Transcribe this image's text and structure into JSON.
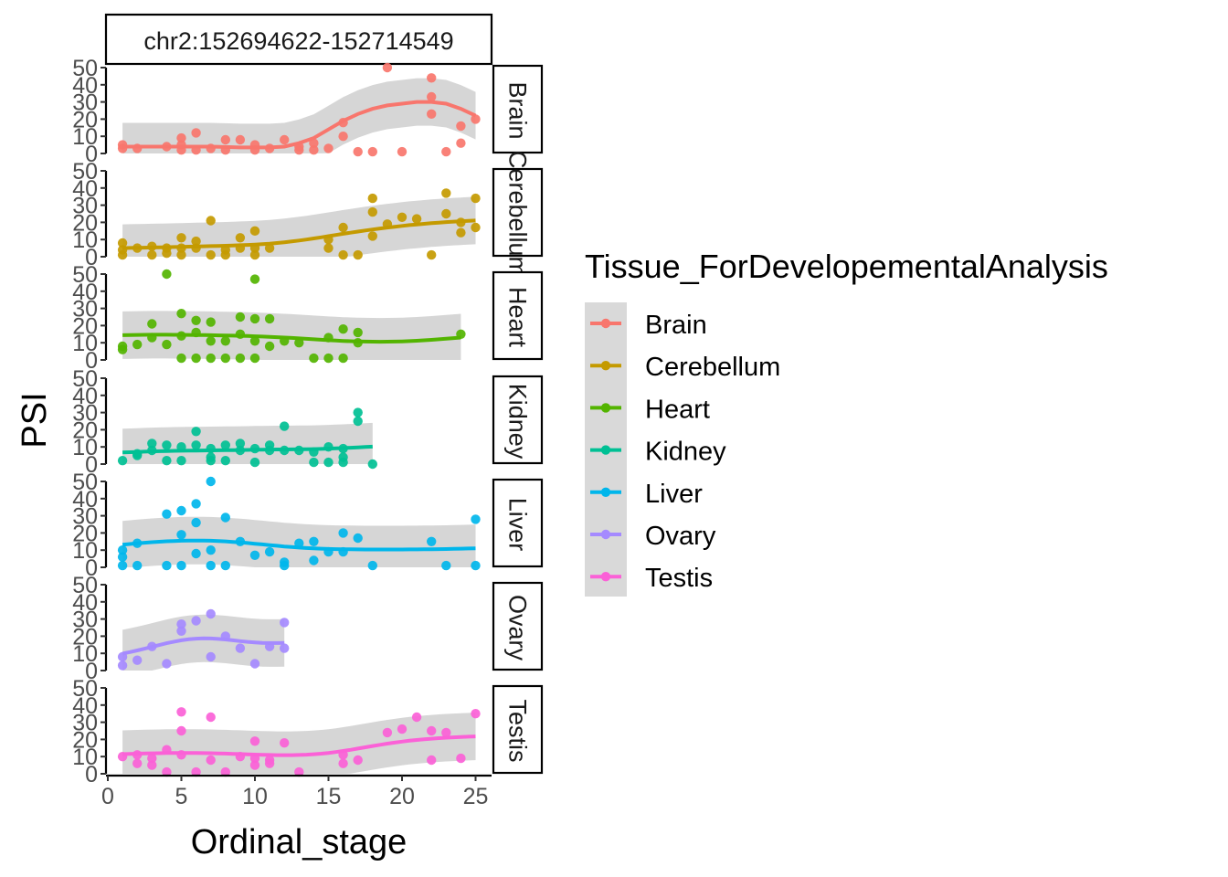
{
  "chart_data": {
    "type": "scatter",
    "facet_title": "chr2:152694622-152714549",
    "xlabel": "Ordinal_stage",
    "ylabel": "PSI",
    "xlim": [
      0,
      28
    ],
    "ylim": [
      0,
      50
    ],
    "x_ticks": [
      0,
      5,
      10,
      15,
      20,
      25
    ],
    "y_ticks": [
      0,
      10,
      20,
      30,
      40,
      50
    ],
    "legend_title": "Tissue_ForDevelopementalAnalysis",
    "legend_position": "right",
    "grid": false,
    "panels": [
      {
        "name": "Brain",
        "strip_label": "Brain",
        "color": "#F8766D",
        "points": [
          [
            1,
            5
          ],
          [
            1,
            3
          ],
          [
            2,
            3
          ],
          [
            4,
            4
          ],
          [
            5,
            9
          ],
          [
            5,
            5
          ],
          [
            5,
            2
          ],
          [
            6,
            12
          ],
          [
            6,
            2
          ],
          [
            7,
            3
          ],
          [
            8,
            8
          ],
          [
            8,
            2
          ],
          [
            9,
            8
          ],
          [
            10,
            5
          ],
          [
            10,
            2
          ],
          [
            11,
            3
          ],
          [
            12,
            8
          ],
          [
            13,
            2
          ],
          [
            13,
            4
          ],
          [
            14,
            2
          ],
          [
            14,
            6
          ],
          [
            15,
            3
          ],
          [
            16,
            18
          ],
          [
            16,
            10
          ],
          [
            17,
            1
          ],
          [
            18,
            1
          ],
          [
            19,
            50
          ],
          [
            20,
            1
          ],
          [
            22,
            44
          ],
          [
            22,
            33
          ],
          [
            22,
            23
          ],
          [
            23,
            1
          ],
          [
            24,
            16
          ],
          [
            24,
            6
          ],
          [
            25,
            20
          ]
        ],
        "trend": [
          [
            1,
            4
          ],
          [
            3,
            4
          ],
          [
            5,
            4
          ],
          [
            7,
            4
          ],
          [
            9,
            3.5
          ],
          [
            11,
            3.5
          ],
          [
            12,
            4
          ],
          [
            13,
            6
          ],
          [
            14,
            9
          ],
          [
            15,
            14
          ],
          [
            16,
            19
          ],
          [
            17,
            23
          ],
          [
            18,
            26
          ],
          [
            19,
            28
          ],
          [
            20,
            29
          ],
          [
            21,
            30
          ],
          [
            22,
            30
          ],
          [
            23,
            29
          ],
          [
            24,
            26
          ],
          [
            25,
            22
          ]
        ]
      },
      {
        "name": "Cerebellum",
        "strip_label": "Cerebellum",
        "color": "#C49A00",
        "points": [
          [
            1,
            8
          ],
          [
            1,
            4
          ],
          [
            1,
            1
          ],
          [
            2,
            5
          ],
          [
            3,
            6
          ],
          [
            3,
            1
          ],
          [
            4,
            5
          ],
          [
            4,
            2
          ],
          [
            5,
            11
          ],
          [
            5,
            5
          ],
          [
            5,
            1
          ],
          [
            6,
            9
          ],
          [
            6,
            5
          ],
          [
            7,
            21
          ],
          [
            7,
            1
          ],
          [
            8,
            4
          ],
          [
            8,
            1
          ],
          [
            9,
            11
          ],
          [
            9,
            5
          ],
          [
            10,
            15
          ],
          [
            10,
            5
          ],
          [
            10,
            1
          ],
          [
            11,
            5
          ],
          [
            15,
            10
          ],
          [
            15,
            5
          ],
          [
            16,
            17
          ],
          [
            16,
            1
          ],
          [
            17,
            1
          ],
          [
            18,
            34
          ],
          [
            18,
            26
          ],
          [
            18,
            12
          ],
          [
            19,
            19
          ],
          [
            20,
            23
          ],
          [
            21,
            22
          ],
          [
            22,
            1
          ],
          [
            23,
            37
          ],
          [
            23,
            25
          ],
          [
            24,
            20
          ],
          [
            24,
            14
          ],
          [
            25,
            34
          ],
          [
            25,
            17
          ]
        ]
      },
      {
        "name": "Heart",
        "strip_label": "Heart",
        "color": "#53B400",
        "points": [
          [
            1,
            8
          ],
          [
            1,
            6
          ],
          [
            2,
            9
          ],
          [
            3,
            21
          ],
          [
            3,
            13
          ],
          [
            4,
            50
          ],
          [
            4,
            9
          ],
          [
            5,
            27
          ],
          [
            5,
            14
          ],
          [
            5,
            1
          ],
          [
            6,
            23
          ],
          [
            6,
            16
          ],
          [
            6,
            1
          ],
          [
            7,
            22
          ],
          [
            7,
            11
          ],
          [
            7,
            1
          ],
          [
            8,
            11
          ],
          [
            8,
            1
          ],
          [
            9,
            25
          ],
          [
            9,
            15
          ],
          [
            9,
            1
          ],
          [
            10,
            47
          ],
          [
            10,
            24
          ],
          [
            10,
            11
          ],
          [
            10,
            1
          ],
          [
            11,
            24
          ],
          [
            11,
            8
          ],
          [
            12,
            11
          ],
          [
            13,
            10
          ],
          [
            14,
            1
          ],
          [
            15,
            13
          ],
          [
            15,
            1
          ],
          [
            16,
            18
          ],
          [
            16,
            1
          ],
          [
            17,
            16
          ],
          [
            17,
            10
          ],
          [
            24,
            15
          ]
        ]
      },
      {
        "name": "Kidney",
        "strip_label": "Kidney",
        "color": "#00C094",
        "points": [
          [
            1,
            2
          ],
          [
            2,
            6
          ],
          [
            2,
            5
          ],
          [
            3,
            8
          ],
          [
            3,
            12
          ],
          [
            4,
            2
          ],
          [
            4,
            11
          ],
          [
            5,
            10
          ],
          [
            5,
            2
          ],
          [
            6,
            19
          ],
          [
            6,
            11
          ],
          [
            7,
            9
          ],
          [
            7,
            4
          ],
          [
            7,
            2
          ],
          [
            8,
            11
          ],
          [
            8,
            2
          ],
          [
            9,
            12
          ],
          [
            9,
            8
          ],
          [
            10,
            9
          ],
          [
            10,
            1
          ],
          [
            11,
            11
          ],
          [
            11,
            8
          ],
          [
            12,
            22
          ],
          [
            12,
            8
          ],
          [
            13,
            8
          ],
          [
            14,
            1
          ],
          [
            14,
            7
          ],
          [
            15,
            1
          ],
          [
            15,
            10
          ],
          [
            16,
            9
          ],
          [
            16,
            4
          ],
          [
            16,
            1
          ],
          [
            17,
            30
          ],
          [
            17,
            25
          ],
          [
            18,
            0
          ]
        ]
      },
      {
        "name": "Liver",
        "strip_label": "Liver",
        "color": "#00B6EB",
        "points": [
          [
            1,
            10
          ],
          [
            1,
            6
          ],
          [
            1,
            1
          ],
          [
            2,
            1
          ],
          [
            2,
            14
          ],
          [
            4,
            31
          ],
          [
            4,
            1
          ],
          [
            5,
            33
          ],
          [
            5,
            19
          ],
          [
            5,
            1
          ],
          [
            6,
            37
          ],
          [
            6,
            26
          ],
          [
            6,
            8
          ],
          [
            7,
            50
          ],
          [
            7,
            10
          ],
          [
            7,
            1
          ],
          [
            8,
            29
          ],
          [
            8,
            1
          ],
          [
            9,
            15
          ],
          [
            10,
            7
          ],
          [
            11,
            9
          ],
          [
            12,
            3
          ],
          [
            12,
            1
          ],
          [
            13,
            14
          ],
          [
            14,
            4
          ],
          [
            14,
            15
          ],
          [
            15,
            9
          ],
          [
            16,
            20
          ],
          [
            16,
            9
          ],
          [
            17,
            17
          ],
          [
            18,
            1
          ],
          [
            22,
            15
          ],
          [
            23,
            1
          ],
          [
            25,
            28
          ],
          [
            25,
            1
          ]
        ]
      },
      {
        "name": "Ovary",
        "strip_label": "Ovary",
        "color": "#A58AFF",
        "points": [
          [
            1,
            8
          ],
          [
            1,
            3
          ],
          [
            2,
            6
          ],
          [
            3,
            14
          ],
          [
            4,
            4
          ],
          [
            5,
            27
          ],
          [
            5,
            23
          ],
          [
            6,
            29
          ],
          [
            7,
            33
          ],
          [
            7,
            8
          ],
          [
            8,
            20
          ],
          [
            9,
            13
          ],
          [
            10,
            4
          ],
          [
            11,
            14
          ],
          [
            12,
            28
          ],
          [
            12,
            13
          ]
        ]
      },
      {
        "name": "Testis",
        "strip_label": "Testis",
        "color": "#FB61D7",
        "points": [
          [
            1,
            10
          ],
          [
            2,
            11
          ],
          [
            2,
            6
          ],
          [
            3,
            5
          ],
          [
            3,
            9
          ],
          [
            4,
            14
          ],
          [
            4,
            1
          ],
          [
            5,
            36
          ],
          [
            5,
            25
          ],
          [
            5,
            11
          ],
          [
            6,
            1
          ],
          [
            7,
            33
          ],
          [
            7,
            8
          ],
          [
            8,
            1
          ],
          [
            9,
            10
          ],
          [
            10,
            5
          ],
          [
            10,
            19
          ],
          [
            10,
            9
          ],
          [
            11,
            8
          ],
          [
            11,
            6
          ],
          [
            12,
            18
          ],
          [
            13,
            1
          ],
          [
            16,
            11
          ],
          [
            16,
            6
          ],
          [
            17,
            8
          ],
          [
            19,
            24
          ],
          [
            20,
            26
          ],
          [
            21,
            33
          ],
          [
            22,
            25
          ],
          [
            22,
            8
          ],
          [
            23,
            24
          ],
          [
            24,
            9
          ],
          [
            25,
            35
          ]
        ]
      }
    ]
  },
  "legend": {
    "title": "Tissue_ForDevelopementalAnalysis",
    "items": [
      {
        "label": "Brain",
        "color": "#F8766D"
      },
      {
        "label": "Cerebellum",
        "color": "#C49A00"
      },
      {
        "label": "Heart",
        "color": "#53B400"
      },
      {
        "label": "Kidney",
        "color": "#00C094"
      },
      {
        "label": "Liver",
        "color": "#00B6EB"
      },
      {
        "label": "Ovary",
        "color": "#A58AFF"
      },
      {
        "label": "Testis",
        "color": "#FB61D7"
      }
    ]
  }
}
